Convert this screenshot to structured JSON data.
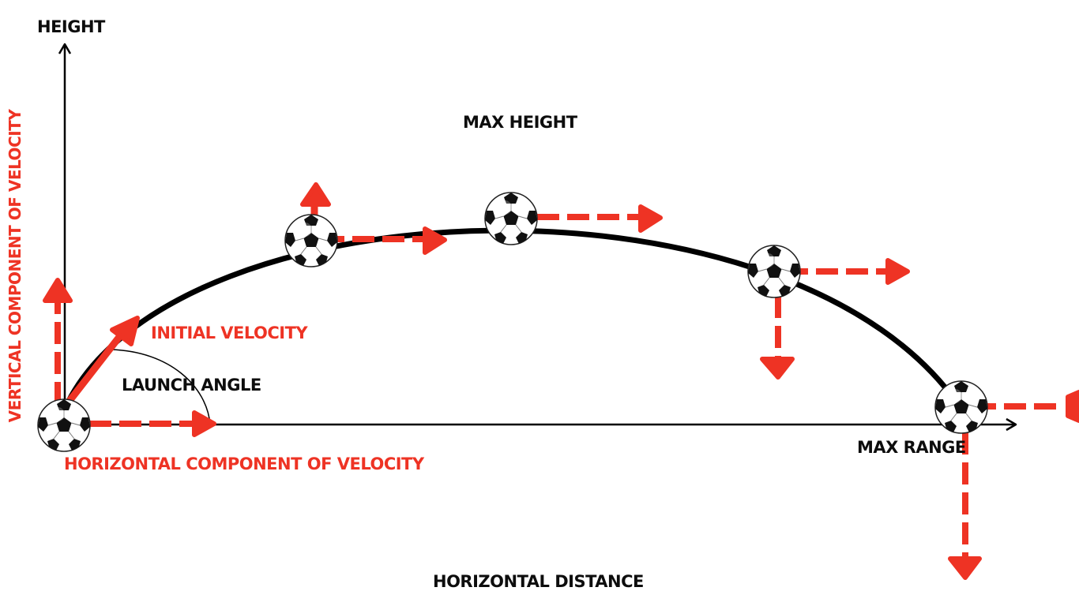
{
  "colors": {
    "vector": "#ee3324",
    "trajectory": "#000000",
    "axis": "#000000",
    "background": "#ffffff"
  },
  "labels": {
    "height_axis": "HEIGHT",
    "vertical_component": "VERTICAL COMPONENT OF VELOCITY",
    "max_height": "MAX HEIGHT",
    "initial_velocity": "INITIAL VELOCITY",
    "launch_angle": "LAUNCH ANGLE",
    "horizontal_component": "HORIZONTAL COMPONENT OF  VELOCITY",
    "max_range": "MAX RANGE",
    "horizontal_distance": "HORIZONTAL DISTANCE"
  },
  "icons": {
    "ball": "soccer-ball-icon"
  }
}
